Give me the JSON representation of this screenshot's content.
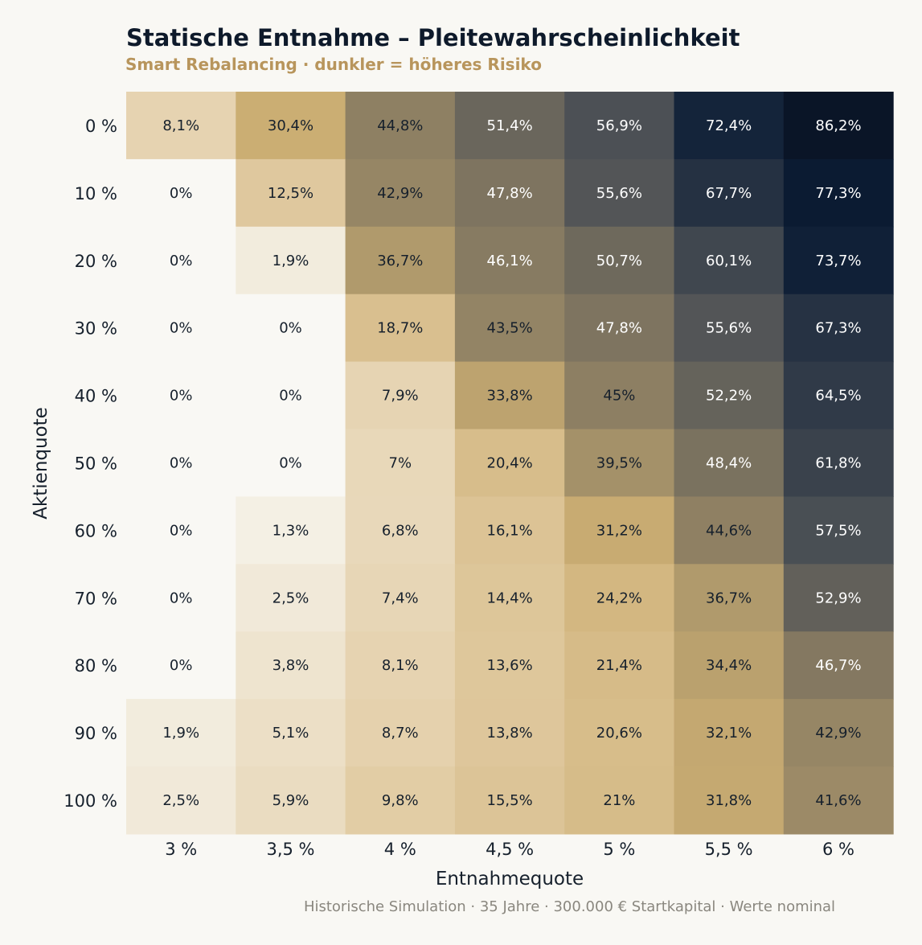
{
  "chart_data": {
    "type": "heatmap",
    "title": "Statische Entnahme – Pleitewahrscheinlichkeit",
    "subtitle": "Smart Rebalancing · dunkler = höheres Risiko",
    "xlabel": "Entnahmequote",
    "ylabel": "Aktienquote",
    "x_categories": [
      "3 %",
      "3,5 %",
      "4 %",
      "4,5 %",
      "5 %",
      "5,5 %",
      "6 %"
    ],
    "y_categories": [
      "0 %",
      "10 %",
      "20 %",
      "30 %",
      "40 %",
      "50 %",
      "60 %",
      "70 %",
      "80 %",
      "90 %",
      "100 %"
    ],
    "values": [
      [
        8.1,
        30.4,
        44.8,
        51.4,
        56.9,
        72.4,
        86.2
      ],
      [
        0,
        12.5,
        42.9,
        47.8,
        55.6,
        67.7,
        77.3
      ],
      [
        0,
        1.9,
        36.7,
        46.1,
        50.7,
        60.1,
        73.7
      ],
      [
        0,
        0,
        18.7,
        43.5,
        47.8,
        55.6,
        67.3
      ],
      [
        0,
        0,
        7.9,
        33.8,
        45,
        52.2,
        64.5
      ],
      [
        0,
        0,
        7,
        20.4,
        39.5,
        48.4,
        61.8
      ],
      [
        0,
        1.3,
        6.8,
        16.1,
        31.2,
        44.6,
        57.5
      ],
      [
        0,
        2.5,
        7.4,
        14.4,
        24.2,
        36.7,
        52.9
      ],
      [
        0,
        3.8,
        8.1,
        13.6,
        21.4,
        34.4,
        46.7
      ],
      [
        1.9,
        5.1,
        8.7,
        13.8,
        20.6,
        32.1,
        42.9
      ],
      [
        2.5,
        5.9,
        9.8,
        15.5,
        21,
        31.8,
        41.6
      ]
    ],
    "value_labels": [
      [
        "8,1%",
        "30,4%",
        "44,8%",
        "51,4%",
        "56,9%",
        "72,4%",
        "86,2%"
      ],
      [
        "0%",
        "12,5%",
        "42,9%",
        "47,8%",
        "55,6%",
        "67,7%",
        "77,3%"
      ],
      [
        "0%",
        "1,9%",
        "36,7%",
        "46,1%",
        "50,7%",
        "60,1%",
        "73,7%"
      ],
      [
        "0%",
        "0%",
        "18,7%",
        "43,5%",
        "47,8%",
        "55,6%",
        "67,3%"
      ],
      [
        "0%",
        "0%",
        "7,9%",
        "33,8%",
        "45%",
        "52,2%",
        "64,5%"
      ],
      [
        "0%",
        "0%",
        "7%",
        "20,4%",
        "39,5%",
        "48,4%",
        "61,8%"
      ],
      [
        "0%",
        "1,3%",
        "6,8%",
        "16,1%",
        "31,2%",
        "44,6%",
        "57,5%"
      ],
      [
        "0%",
        "2,5%",
        "7,4%",
        "14,4%",
        "24,2%",
        "36,7%",
        "52,9%"
      ],
      [
        "0%",
        "3,8%",
        "8,1%",
        "13,6%",
        "21,4%",
        "34,4%",
        "46,7%"
      ],
      [
        "1,9%",
        "5,1%",
        "8,7%",
        "13,8%",
        "20,6%",
        "32,1%",
        "42,9%"
      ],
      [
        "2,5%",
        "5,9%",
        "9,8%",
        "15,5%",
        "21%",
        "31,8%",
        "41,6%"
      ]
    ],
    "color_scale": [
      "#f9f8f4",
      "#f2ebdc",
      "#e2cca4",
      "#cdaf73",
      "#8d7f63",
      "#4b5055",
      "#0b1c35",
      "#0a1322"
    ],
    "legend": "none",
    "grid": false
  },
  "footnote": "Historische Simulation · 35 Jahre · 300.000 € Startkapital · Werte nominal",
  "colors": {
    "background": "#f9f8f4",
    "title": "#0e1a2b",
    "subtitle": "#b8955c",
    "footnote": "#8a877f",
    "text_dark": "#16202c",
    "text_light": "#ffffff"
  }
}
